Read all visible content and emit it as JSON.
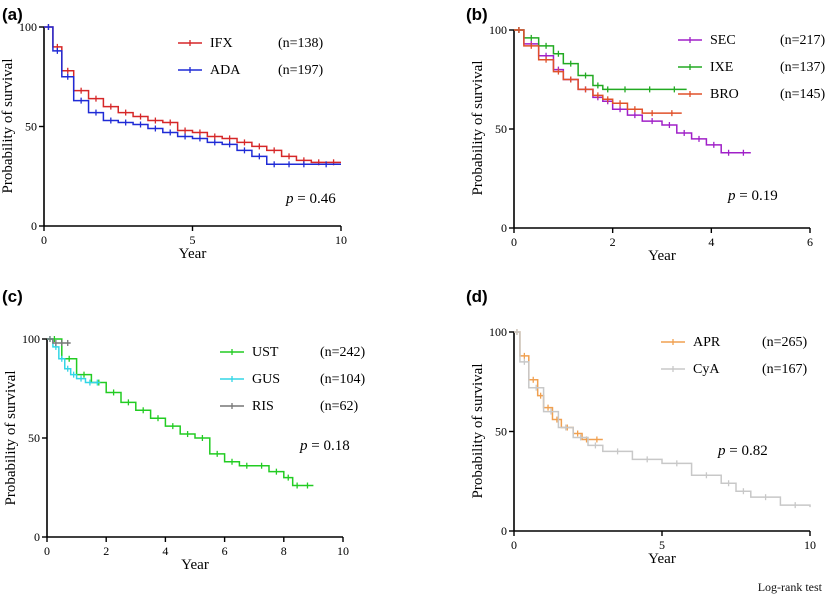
{
  "footer": "Log-rank test",
  "chart_data": [
    {
      "type": "line",
      "panel": "(a)",
      "xlabel": "Year",
      "ylabel": "Probability of survival",
      "xlim": [
        0,
        10
      ],
      "ylim": [
        0,
        100
      ],
      "xticks": [
        0,
        5,
        10
      ],
      "yticks": [
        0,
        50,
        100
      ],
      "pvalue": "= 0.46",
      "series": [
        {
          "name": "IFX",
          "n": "(n=138)",
          "color": "#d62728",
          "x": [
            0,
            0.3,
            0.6,
            1,
            1.5,
            2,
            2.5,
            3,
            3.5,
            4,
            4.5,
            5,
            5.5,
            6,
            6.5,
            7,
            7.5,
            8,
            8.5,
            9,
            9.5,
            10
          ],
          "y": [
            100,
            90,
            78,
            68,
            64,
            60,
            57,
            55,
            53,
            52,
            48,
            47,
            45,
            44,
            42,
            40,
            38,
            35,
            33,
            32,
            32,
            32
          ]
        },
        {
          "name": "ADA",
          "n": "(n=197)",
          "color": "#1f2bd6",
          "x": [
            0,
            0.3,
            0.6,
            1,
            1.5,
            2,
            2.5,
            3,
            3.5,
            4,
            4.5,
            5,
            5.5,
            6,
            6.5,
            7,
            7.5,
            8,
            8.5,
            9,
            10
          ],
          "y": [
            100,
            88,
            75,
            63,
            57,
            53,
            52,
            51,
            49,
            47,
            45,
            44,
            42,
            41,
            38,
            35,
            31,
            31,
            31,
            31,
            31
          ]
        }
      ]
    },
    {
      "type": "line",
      "panel": "(b)",
      "xlabel": "Year",
      "ylabel": "Probability of survival",
      "xlim": [
        0,
        6
      ],
      "ylim": [
        0,
        100
      ],
      "xticks": [
        0,
        2,
        4,
        6
      ],
      "yticks": [
        0,
        50,
        100
      ],
      "pvalue": "= 0.19",
      "series": [
        {
          "name": "SEC",
          "n": "(n=217)",
          "color": "#a020c8",
          "x": [
            0,
            0.2,
            0.5,
            0.8,
            1.0,
            1.3,
            1.6,
            1.8,
            2.0,
            2.3,
            2.6,
            3.0,
            3.3,
            3.6,
            3.9,
            4.2,
            4.5,
            4.8
          ],
          "y": [
            100,
            93,
            87,
            80,
            75,
            70,
            66,
            64,
            60,
            57,
            54,
            52,
            48,
            45,
            42,
            38,
            38,
            38
          ]
        },
        {
          "name": "IXE",
          "n": "(n=137)",
          "color": "#22aa22",
          "x": [
            0,
            0.2,
            0.5,
            0.8,
            1.0,
            1.3,
            1.6,
            1.8,
            2.0,
            2.5,
            3.0,
            3.5
          ],
          "y": [
            100,
            96,
            92,
            88,
            83,
            77,
            72,
            70,
            70,
            70,
            70,
            70
          ]
        },
        {
          "name": "BRO",
          "n": "(n=145)",
          "color": "#e0502a",
          "x": [
            0,
            0.2,
            0.5,
            0.8,
            1.0,
            1.3,
            1.6,
            1.8,
            2.0,
            2.3,
            2.6,
            3.0,
            3.4
          ],
          "y": [
            100,
            92,
            85,
            79,
            75,
            70,
            67,
            65,
            63,
            60,
            58,
            58,
            58
          ]
        }
      ]
    },
    {
      "type": "line",
      "panel": "(c)",
      "xlabel": "Year",
      "ylabel": "Probability of survival",
      "xlim": [
        0,
        10
      ],
      "ylim": [
        0,
        100
      ],
      "xticks": [
        0,
        2,
        4,
        6,
        8,
        10
      ],
      "yticks": [
        0,
        50,
        100
      ],
      "pvalue": "= 0.18",
      "series": [
        {
          "name": "UST",
          "n": "(n=242)",
          "color": "#22cc22",
          "x": [
            0,
            0.5,
            1,
            1.5,
            2,
            2.5,
            3,
            3.5,
            4,
            4.5,
            5,
            5.5,
            6,
            6.5,
            7,
            7.5,
            8,
            8.3,
            8.6,
            9
          ],
          "y": [
            100,
            90,
            82,
            78,
            73,
            68,
            64,
            60,
            56,
            52,
            50,
            42,
            38,
            36,
            36,
            33,
            30,
            26,
            26,
            26
          ]
        },
        {
          "name": "GUS",
          "n": "(n=104)",
          "color": "#33d6e6",
          "x": [
            0,
            0.2,
            0.4,
            0.6,
            0.8,
            1.0,
            1.3,
            1.6,
            1.8
          ],
          "y": [
            100,
            96,
            90,
            85,
            82,
            80,
            78,
            78,
            78
          ]
        },
        {
          "name": "RIS",
          "n": "(n=62)",
          "color": "#777777",
          "x": [
            0,
            0.2,
            0.4,
            0.6,
            0.8
          ],
          "y": [
            100,
            98,
            98,
            98,
            98
          ]
        }
      ]
    },
    {
      "type": "line",
      "panel": "(d)",
      "xlabel": "Year",
      "ylabel": "Probability of survival",
      "xlim": [
        0,
        10
      ],
      "ylim": [
        0,
        100
      ],
      "xticks": [
        0,
        5,
        10
      ],
      "yticks": [
        0,
        50,
        100
      ],
      "pvalue": "= 0.82",
      "series": [
        {
          "name": "APR",
          "n": "(n=265)",
          "color": "#f0a050",
          "x": [
            0,
            0.2,
            0.5,
            0.8,
            1.0,
            1.3,
            1.6,
            2.0,
            2.3,
            2.6,
            3.0
          ],
          "y": [
            100,
            88,
            76,
            68,
            62,
            56,
            52,
            49,
            46,
            46,
            46
          ]
        },
        {
          "name": "CyA",
          "n": "(n=167)",
          "color": "#c8c8c8",
          "x": [
            0,
            0.2,
            0.5,
            1.0,
            1.5,
            2.0,
            2.5,
            3.0,
            4.0,
            5.0,
            6.0,
            7.0,
            7.5,
            8.0,
            9.0,
            10.0
          ],
          "y": [
            100,
            85,
            72,
            60,
            52,
            47,
            43,
            40,
            36,
            34,
            28,
            24,
            20,
            17,
            13,
            12
          ]
        }
      ]
    }
  ]
}
